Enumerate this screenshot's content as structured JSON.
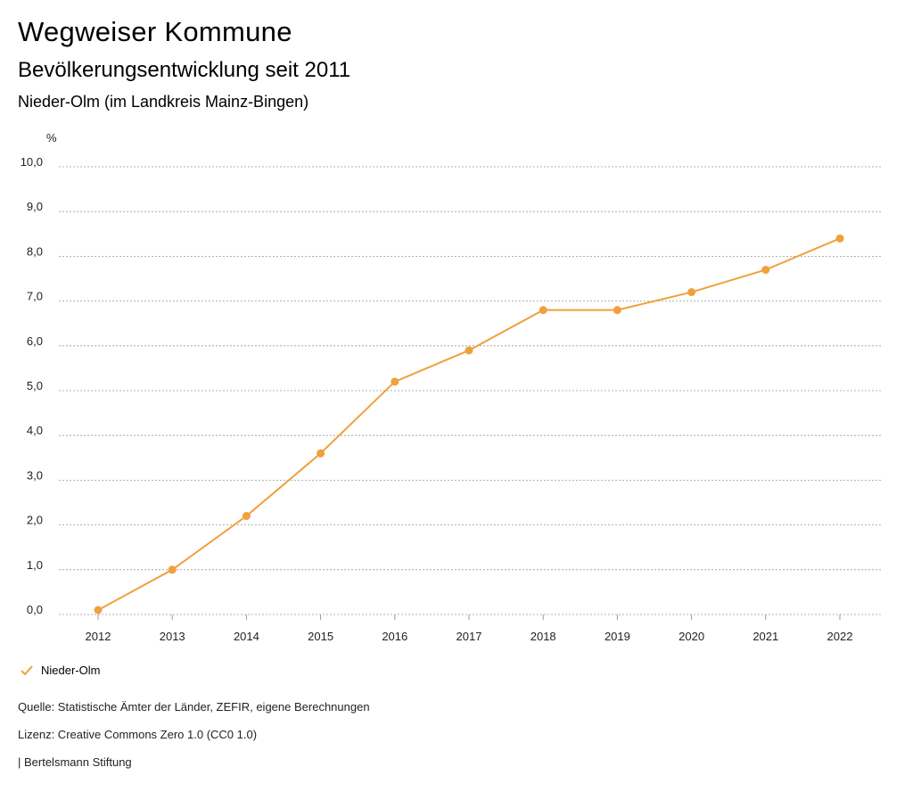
{
  "header": {
    "title": "Wegweiser Kommune",
    "subtitle": "Bevölkerungsentwicklung seit 2011",
    "region": "Nieder-Olm (im Landkreis Mainz-Bingen)"
  },
  "chart_data": {
    "type": "line",
    "unit_label": "%",
    "x": [
      "2012",
      "2013",
      "2014",
      "2015",
      "2016",
      "2017",
      "2018",
      "2019",
      "2020",
      "2021",
      "2022"
    ],
    "series": [
      {
        "name": "Nieder-Olm",
        "color": "#f0a03c",
        "values": [
          0.1,
          1.0,
          2.2,
          3.6,
          5.2,
          5.9,
          6.8,
          6.8,
          7.2,
          7.7,
          8.4
        ]
      }
    ],
    "ylim": [
      0,
      10
    ],
    "yticks": [
      "0,0",
      "1,0",
      "2,0",
      "3,0",
      "4,0",
      "5,0",
      "6,0",
      "7,0",
      "8,0",
      "9,0",
      "10,0"
    ],
    "grid": true,
    "legend_position": "bottom-left"
  },
  "legend": {
    "label": "Nieder-Olm"
  },
  "footer": {
    "source": "Quelle: Statistische Ämter der Länder, ZEFIR, eigene Berechnungen",
    "license": "Lizenz: Creative Commons Zero 1.0 (CC0 1.0)",
    "org": "| Bertelsmann Stiftung"
  }
}
